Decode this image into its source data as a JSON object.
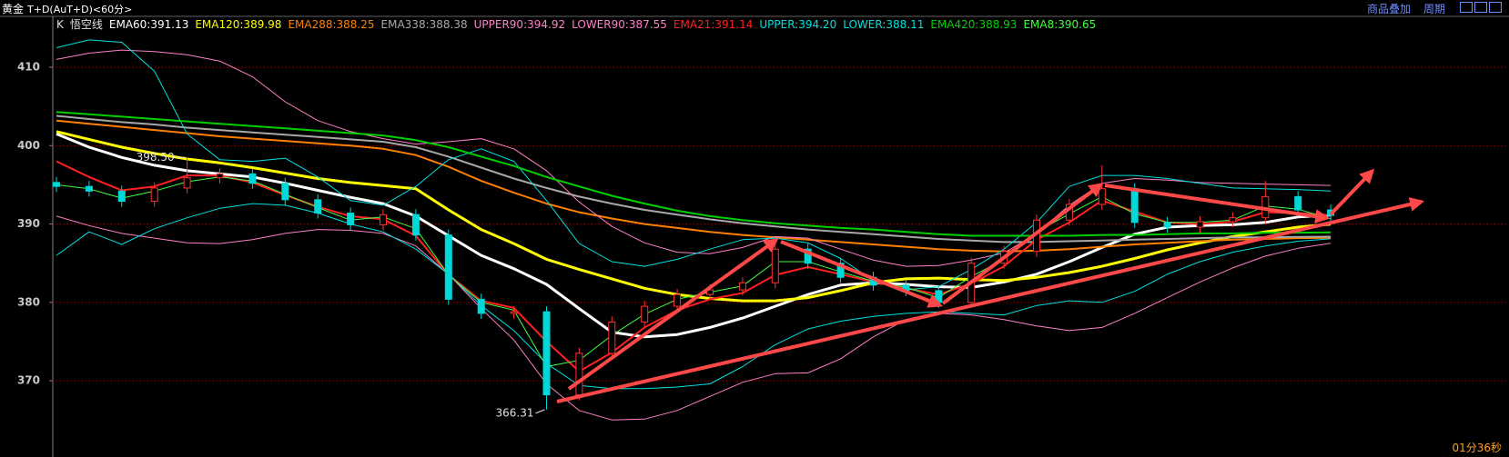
{
  "header": {
    "title": "黄金",
    "subtitle": "T+D(AuT+D)<60分>"
  },
  "toolbar": {
    "overlay": "商品叠加",
    "period": "周期"
  },
  "status": {
    "timer": "01分36秒"
  },
  "chart_data": {
    "type": "candlestick",
    "indicator_prefix": "K",
    "indicator_name": "悟空线",
    "categories": [
      null,
      null,
      null,
      null,
      null,
      null,
      null,
      null,
      null,
      null,
      null,
      null,
      null,
      null,
      null,
      null,
      null,
      null,
      null,
      null,
      null,
      null,
      null,
      null,
      null,
      null,
      null,
      null,
      null,
      null,
      null,
      null,
      null,
      null,
      null,
      null,
      null,
      null,
      null,
      null
    ],
    "open": [
      395.3,
      394.8,
      394.2,
      392.9,
      394.6,
      395.9,
      396.4,
      395.2,
      393.1,
      391.4,
      389.9,
      391.2,
      388.6,
      380.4,
      378.6,
      378.8,
      368.2,
      373.5,
      377.5,
      379.5,
      381.0,
      381.6,
      382.5,
      386.8,
      385.0,
      383.2,
      382.2,
      381.5,
      380.0,
      385.0,
      386.5,
      390.5,
      392.5,
      394.5,
      390.2,
      389.6,
      390.3,
      390.8,
      393.5,
      391.8
    ],
    "high": [
      396.0,
      395.5,
      394.9,
      395.3,
      398.5,
      397.1,
      397.0,
      395.9,
      393.8,
      392.1,
      391.9,
      391.9,
      389.3,
      381.1,
      379.5,
      379.5,
      374.2,
      378.2,
      380.2,
      381.7,
      382.3,
      383.2,
      387.5,
      387.5,
      385.7,
      383.9,
      382.9,
      382.2,
      385.7,
      387.2,
      391.2,
      393.2,
      397.5,
      395.2,
      390.9,
      391.0,
      391.5,
      395.5,
      394.2,
      392.5
    ],
    "low": [
      394.1,
      393.5,
      392.2,
      392.2,
      393.9,
      395.2,
      394.5,
      392.4,
      390.7,
      389.2,
      389.2,
      387.9,
      379.7,
      377.9,
      377.9,
      366.31,
      367.5,
      372.8,
      376.8,
      378.8,
      380.3,
      380.9,
      381.8,
      384.3,
      382.5,
      381.5,
      380.8,
      379.3,
      379.3,
      384.3,
      385.8,
      389.8,
      391.8,
      389.5,
      388.9,
      388.9,
      389.6,
      390.1,
      391.1,
      390.4
    ],
    "close": [
      394.8,
      394.2,
      392.9,
      394.6,
      395.9,
      396.4,
      395.2,
      393.1,
      391.4,
      389.9,
      391.2,
      388.6,
      380.4,
      378.6,
      378.8,
      368.2,
      373.5,
      377.5,
      379.5,
      381.0,
      381.6,
      382.5,
      386.8,
      385.0,
      383.2,
      382.2,
      381.5,
      380.0,
      385.0,
      386.5,
      390.5,
      392.5,
      394.5,
      390.2,
      389.6,
      390.3,
      390.8,
      393.5,
      391.8,
      391.1
    ],
    "up_color": "#ff3030",
    "down_color": "#00d8d8",
    "series": [
      {
        "name": "EMA60:391.13",
        "color": "#ffffff",
        "line_width": 3,
        "values": [
          401.5,
          399.8,
          398.5,
          397.5,
          396.8,
          396.4,
          396.0,
          395.2,
          394.3,
          393.4,
          392.6,
          391.0,
          388.5,
          386.0,
          384.3,
          382.3,
          379.2,
          376.2,
          375.6,
          375.9,
          376.8,
          378.0,
          379.5,
          381.0,
          382.2,
          382.5,
          382.3,
          382.0,
          381.9,
          382.6,
          383.6,
          385.2,
          387.0,
          388.7,
          389.6,
          389.8,
          389.9,
          390.2,
          390.9,
          391.13
        ]
      },
      {
        "name": "EMA120:389.98",
        "color": "#ffff00",
        "line_width": 3,
        "values": [
          401.8,
          400.8,
          399.8,
          399.0,
          398.3,
          397.8,
          397.2,
          396.5,
          395.8,
          395.3,
          394.9,
          394.5,
          391.8,
          389.3,
          387.5,
          385.5,
          384.2,
          383.0,
          381.8,
          381.0,
          380.5,
          380.2,
          380.2,
          380.6,
          381.5,
          382.5,
          383.0,
          383.1,
          382.9,
          382.8,
          383.2,
          383.8,
          384.6,
          385.6,
          386.7,
          387.6,
          388.4,
          389.0,
          389.6,
          389.98
        ]
      },
      {
        "name": "EMA288:388.25",
        "color": "#ff8000",
        "line_width": 2,
        "values": [
          403.2,
          402.8,
          402.4,
          402.0,
          401.6,
          401.2,
          400.9,
          400.6,
          400.3,
          400.0,
          399.6,
          398.8,
          397.3,
          395.5,
          394.0,
          392.6,
          391.5,
          390.7,
          390.0,
          389.5,
          389.0,
          388.6,
          388.3,
          388.0,
          387.7,
          387.4,
          387.1,
          386.8,
          386.6,
          386.5,
          386.6,
          386.8,
          387.1,
          387.4,
          387.6,
          387.8,
          388.0,
          388.1,
          388.2,
          388.25
        ]
      },
      {
        "name": "EMA338:388.38",
        "color": "#a8a8a8",
        "line_width": 2,
        "values": [
          403.8,
          403.4,
          403.0,
          402.7,
          402.3,
          402.0,
          401.7,
          401.4,
          401.1,
          400.8,
          400.5,
          399.8,
          398.6,
          397.2,
          395.8,
          394.6,
          393.5,
          392.6,
          391.8,
          391.2,
          390.6,
          390.1,
          389.7,
          389.3,
          389.0,
          388.7,
          388.4,
          388.1,
          387.9,
          387.7,
          387.7,
          387.8,
          387.9,
          388.0,
          388.1,
          388.2,
          388.3,
          388.3,
          388.35,
          388.38
        ]
      },
      {
        "name": "UPPER90:394.92",
        "color": "#ff80c8",
        "line_width": 1,
        "values": [
          411.0,
          411.8,
          412.2,
          412.0,
          411.6,
          410.8,
          408.8,
          405.6,
          403.2,
          401.8,
          400.9,
          400.2,
          400.5,
          400.9,
          399.6,
          396.8,
          392.8,
          389.7,
          387.6,
          386.4,
          386.2,
          387.0,
          388.4,
          388.2,
          386.8,
          385.4,
          384.6,
          384.7,
          385.4,
          386.3,
          388.8,
          392.4,
          395.2,
          395.8,
          395.6,
          395.3,
          395.2,
          395.1,
          395.0,
          394.92
        ]
      },
      {
        "name": "LOWER90:387.55",
        "color": "#ff80c8",
        "line_width": 1,
        "values": [
          391.0,
          389.8,
          388.8,
          388.2,
          387.6,
          387.5,
          388.0,
          388.8,
          389.3,
          389.2,
          388.8,
          387.2,
          383.6,
          379.2,
          375.2,
          369.6,
          366.2,
          365.0,
          365.1,
          366.2,
          368.0,
          369.8,
          370.9,
          371.0,
          372.8,
          375.6,
          377.8,
          378.6,
          378.4,
          377.8,
          377.0,
          376.4,
          376.8,
          378.6,
          380.6,
          382.6,
          384.4,
          385.9,
          386.9,
          387.55
        ]
      },
      {
        "name": "EMA21:391.14",
        "color": "#ff2020",
        "line_width": 2,
        "values": [
          398.0,
          396.0,
          394.3,
          394.8,
          396.2,
          396.2,
          395.3,
          393.7,
          392.2,
          391.0,
          390.6,
          388.5,
          383.5,
          380.2,
          379.3,
          375.0,
          371.2,
          373.6,
          376.8,
          379.0,
          380.4,
          381.2,
          383.5,
          384.5,
          383.6,
          382.6,
          381.8,
          381.0,
          382.4,
          384.6,
          388.0,
          390.2,
          393.0,
          391.6,
          390.2,
          390.0,
          390.3,
          391.5,
          391.4,
          391.14
        ]
      },
      {
        "name": "UPPER:394.20",
        "color": "#00e0e0",
        "line_width": 1,
        "values": [
          412.5,
          413.5,
          413.2,
          409.5,
          401.5,
          398.2,
          398.0,
          398.4,
          396.0,
          393.0,
          392.4,
          394.8,
          398.2,
          399.6,
          398.0,
          393.0,
          387.5,
          385.2,
          384.6,
          385.5,
          386.8,
          388.0,
          388.2,
          387.6,
          385.6,
          382.8,
          381.6,
          382.0,
          384.2,
          386.8,
          390.2,
          394.8,
          396.2,
          396.2,
          395.8,
          395.2,
          394.6,
          394.5,
          394.4,
          394.2
        ]
      },
      {
        "name": "LOWER:388.11",
        "color": "#00e0e0",
        "line_width": 1,
        "values": [
          386.0,
          389.0,
          387.4,
          389.4,
          390.8,
          392.0,
          392.6,
          392.4,
          391.4,
          390.0,
          389.0,
          386.8,
          383.6,
          379.6,
          376.4,
          372.2,
          369.4,
          369.0,
          369.0,
          369.2,
          369.6,
          371.8,
          374.6,
          376.6,
          377.6,
          378.2,
          378.6,
          378.8,
          378.6,
          378.4,
          379.6,
          380.2,
          380.0,
          381.4,
          383.6,
          385.2,
          386.4,
          387.2,
          387.8,
          388.11
        ]
      },
      {
        "name": "EMA420:388.93",
        "color": "#00d000",
        "line_width": 2,
        "values": [
          404.3,
          404.0,
          403.7,
          403.4,
          403.1,
          402.8,
          402.5,
          402.2,
          401.9,
          401.6,
          401.3,
          400.7,
          399.8,
          398.6,
          397.4,
          396.0,
          394.8,
          393.6,
          392.6,
          391.7,
          391.0,
          390.5,
          390.1,
          389.8,
          389.5,
          389.3,
          389.0,
          388.7,
          388.5,
          388.5,
          388.5,
          388.5,
          388.6,
          388.6,
          388.7,
          388.8,
          388.8,
          388.9,
          388.9,
          388.93
        ]
      },
      {
        "name": "EMA8:390.65",
        "color": "#40ff40",
        "line_width": 1,
        "values": [
          395.0,
          394.5,
          393.3,
          394.2,
          395.4,
          396.0,
          395.5,
          393.8,
          392.1,
          390.5,
          390.9,
          389.4,
          383.5,
          380.0,
          379.0,
          371.8,
          372.6,
          375.8,
          378.5,
          380.4,
          381.3,
          382.1,
          385.2,
          385.2,
          383.9,
          382.7,
          381.9,
          380.6,
          383.3,
          385.5,
          389.0,
          391.3,
          393.5,
          391.3,
          390.2,
          390.2,
          390.5,
          392.3,
          391.9,
          390.65
        ]
      }
    ],
    "annotations": [
      {
        "value": 398.5,
        "label": "398.50"
      },
      {
        "value": 366.31,
        "label": "366.31"
      }
    ],
    "ylim": [
      363.4,
      416.5
    ],
    "yticks": [
      370,
      380,
      390,
      400,
      410
    ],
    "grid": true,
    "grid_color": "#b01010"
  }
}
